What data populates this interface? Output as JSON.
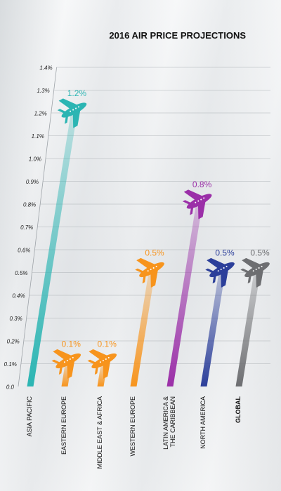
{
  "chart_data": {
    "type": "bar",
    "title": "2016 AIR PRICE PROJECTIONS",
    "categories": [
      "ASIA PACIFIC",
      "EASTERN EUROPE",
      "MIDDLE EAST & AFRICA",
      "WESTERN EUROPE",
      "LATIN AMERICA &\nTHE CARIBBEAN",
      "NORTH AMERICA",
      "GLOBAL"
    ],
    "values": [
      1.2,
      0.1,
      0.1,
      0.5,
      0.8,
      0.5,
      0.5
    ],
    "value_labels": [
      "1.2%",
      "0.1%",
      "0.1%",
      "0.5%",
      "0.8%",
      "0.5%",
      "0.5%"
    ],
    "colors": [
      "#2bb5b3",
      "#f7941d",
      "#f7941d",
      "#f7941d",
      "#9b2fa8",
      "#2c3f9a",
      "#6d6e71"
    ],
    "y_ticks": [
      "0.0",
      "0.1%",
      "0.2%",
      "0.3%",
      "0.4%",
      "0.5%",
      "0.6%",
      "0.7%",
      "0.8%",
      "0.9%",
      "1.0%",
      "1.1%",
      "1.2%",
      "1.3%",
      "1.4%"
    ],
    "ylim": [
      0,
      1.4
    ],
    "grid": true,
    "bold_categories": [
      "GLOBAL"
    ]
  }
}
